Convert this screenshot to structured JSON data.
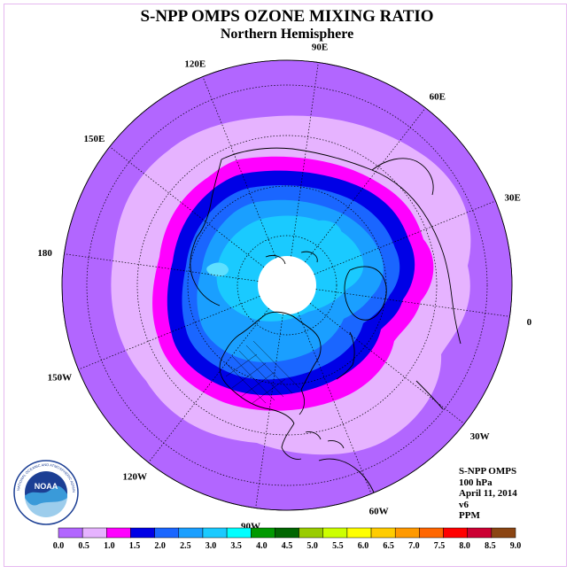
{
  "title": "S-NPP OMPS OZONE MIXING RATIO",
  "subtitle": "Northern Hemisphere",
  "longitude_labels": [
    "90E",
    "60E",
    "30E",
    "0",
    "30W",
    "60W",
    "90W",
    "120W",
    "150W",
    "180",
    "150E",
    "120E"
  ],
  "info": {
    "instrument": "S-NPP OMPS",
    "level": "100 hPa",
    "date": "April 11, 2014",
    "version": "v6",
    "units": "PPM"
  },
  "colorbar": {
    "ticks": [
      "0.0",
      "0.5",
      "1.0",
      "1.5",
      "2.0",
      "2.5",
      "3.0",
      "3.5",
      "4.0",
      "4.5",
      "5.0",
      "5.5",
      "6.0",
      "6.5",
      "7.0",
      "7.5",
      "8.0",
      "8.5",
      "9.0"
    ],
    "colors": [
      "#b266ff",
      "#e6b3ff",
      "#ff00ff",
      "#0000e6",
      "#1a66ff",
      "#1a9fff",
      "#1acaff",
      "#00ffff",
      "#009900",
      "#006600",
      "#99cc00",
      "#ccff00",
      "#ffff00",
      "#ffcc00",
      "#ff9900",
      "#ff6600",
      "#ff0000",
      "#cc0033",
      "#8b4513"
    ]
  },
  "colors": {
    "background_region": "#b266ff",
    "level_0_5": "#e6b3ff",
    "level_1_0": "#ff00ff",
    "level_1_5": "#0000e6",
    "level_2_0": "#1a66ff",
    "level_2_5": "#1a9fff",
    "level_3_0": "#1acaff",
    "polar_night": "#ffffff"
  },
  "logo_text": "NATIONAL OCEANIC AND ATMOSPHERIC ADMINISTRATION · U.S. DEPARTMENT OF COMMERCE",
  "logo_name": "NOAA"
}
